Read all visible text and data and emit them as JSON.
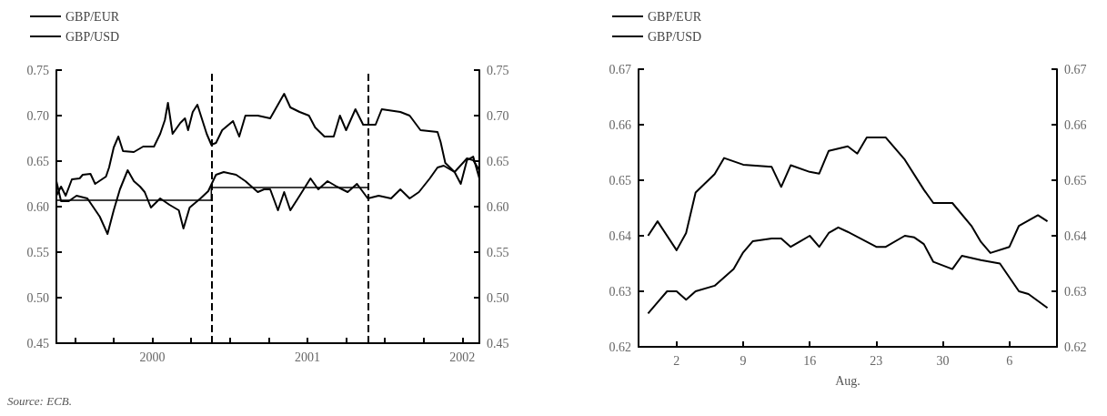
{
  "chart_data": [
    {
      "type": "line",
      "legend": "top left",
      "marker": "none",
      "annotations": [
        "Source: ECB."
      ],
      "xlim": [
        1999.88,
        2002.61
      ],
      "xticks": [
        {
          "value": 2000,
          "label": null
        },
        {
          "value": 2000.25,
          "label": null
        },
        {
          "value": 2000.5,
          "label": "2000"
        },
        {
          "value": 2000.75,
          "label": null
        },
        {
          "value": 2001,
          "label": null
        },
        {
          "value": 2001.25,
          "label": null
        },
        {
          "value": 2001.5,
          "label": "2001"
        },
        {
          "value": 2001.75,
          "label": null
        },
        {
          "value": 2002,
          "label": null
        },
        {
          "value": 2002.25,
          "label": null
        },
        {
          "value": 2002.5,
          "label": "2002"
        }
      ],
      "ylim": [
        0.45,
        0.75
      ],
      "yticks": [
        {
          "value": 0.45,
          "label": "0.45"
        },
        {
          "value": 0.5,
          "label": "0.50"
        },
        {
          "value": 0.55,
          "label": "0.55"
        },
        {
          "value": 0.6,
          "label": "0.60"
        },
        {
          "value": 0.65,
          "label": "0.65"
        },
        {
          "value": 0.7,
          "label": "0.70"
        },
        {
          "value": 0.75,
          "label": "0.75"
        }
      ],
      "y2lim": [
        0.45,
        0.75
      ],
      "y2ticks": [
        {
          "value": 0.45,
          "label": "0.45"
        },
        {
          "value": 0.5,
          "label": "0.50"
        },
        {
          "value": 0.55,
          "label": "0.55"
        },
        {
          "value": 0.6,
          "label": "0.60"
        },
        {
          "value": 0.65,
          "label": "0.65"
        },
        {
          "value": 0.7,
          "label": "0.70"
        },
        {
          "value": 0.75,
          "label": "0.75"
        }
      ],
      "ref_lines": [
        {
          "axis": "x",
          "value": 2000.88,
          "line_style": "dashed",
          "color": "#000000"
        },
        {
          "axis": "x",
          "value": 2001.89,
          "line_style": "dashed",
          "color": "#000000"
        }
      ],
      "series": [
        {
          "name": "GBP/EUR",
          "color": "#000000",
          "x": [
            1999.88,
            1999.91,
            1999.96,
            2000.01,
            2000.08,
            2000.12,
            2000.16,
            2000.21,
            2000.25,
            2000.29,
            2000.34,
            2000.38,
            2000.42,
            2000.45,
            2000.49,
            2000.55,
            2000.61,
            2000.67,
            2000.7,
            2000.74,
            2000.81,
            2000.86,
            2000.91,
            2000.96,
            2001.04,
            2001.1,
            2001.18,
            2001.22,
            2001.26,
            2001.31,
            2001.35,
            2001.39,
            2001.45,
            2001.52,
            2001.57,
            2001.63,
            2001.69,
            2001.76,
            2001.82,
            2001.89,
            2001.96,
            2002.04,
            2002.1,
            2002.16,
            2002.22,
            2002.29,
            2002.34,
            2002.38,
            2002.45,
            2002.53,
            2002.57,
            2002.61
          ],
          "values": [
            0.628,
            0.606,
            0.606,
            0.612,
            0.609,
            0.599,
            0.589,
            0.57,
            0.596,
            0.619,
            0.64,
            0.628,
            0.622,
            0.616,
            0.599,
            0.609,
            0.602,
            0.596,
            0.576,
            0.599,
            0.609,
            0.617,
            0.635,
            0.638,
            0.635,
            0.628,
            0.616,
            0.619,
            0.619,
            0.596,
            0.616,
            0.596,
            0.612,
            0.631,
            0.619,
            0.628,
            0.622,
            0.616,
            0.625,
            0.609,
            0.612,
            0.609,
            0.619,
            0.609,
            0.616,
            0.631,
            0.643,
            0.645,
            0.638,
            0.653,
            0.651,
            0.64
          ]
        },
        {
          "name": "GBP/USD",
          "color": "#000000",
          "x": [
            1999.88,
            1999.91,
            1999.94,
            1999.98,
            2000.03,
            2000.05,
            2000.1,
            2000.13,
            2000.2,
            2000.22,
            2000.25,
            2000.28,
            2000.31,
            2000.38,
            2000.44,
            2000.51,
            2000.55,
            2000.58,
            2000.6,
            2000.63,
            2000.68,
            2000.71,
            2000.73,
            2000.76,
            2000.79,
            2000.85,
            2000.88,
            2000.91,
            2000.95,
            2001.02,
            2001.06,
            2001.1,
            2001.18,
            2001.26,
            2001.35,
            2001.39,
            2001.45,
            2001.51,
            2001.55,
            2001.61,
            2001.67,
            2001.71,
            2001.75,
            2001.81,
            2001.86,
            2001.94,
            2001.98,
            2002.1,
            2002.16,
            2002.23,
            2002.34,
            2002.36,
            2002.39,
            2002.45,
            2002.49,
            2002.53,
            2002.57,
            2002.61
          ],
          "values": [
            0.612,
            0.622,
            0.612,
            0.63,
            0.631,
            0.635,
            0.636,
            0.625,
            0.633,
            0.643,
            0.665,
            0.677,
            0.661,
            0.66,
            0.666,
            0.666,
            0.68,
            0.695,
            0.714,
            0.68,
            0.692,
            0.697,
            0.684,
            0.704,
            0.712,
            0.68,
            0.668,
            0.67,
            0.684,
            0.694,
            0.677,
            0.7,
            0.7,
            0.697,
            0.724,
            0.709,
            0.704,
            0.7,
            0.687,
            0.677,
            0.677,
            0.7,
            0.684,
            0.707,
            0.69,
            0.69,
            0.707,
            0.704,
            0.7,
            0.684,
            0.682,
            0.671,
            0.648,
            0.638,
            0.625,
            0.651,
            0.655,
            0.631
          ]
        },
        {
          "color": "#000000",
          "x": [
            1999.88,
            2000.88,
            2000.88,
            2001.89
          ],
          "values": [
            0.607,
            0.607,
            0.621,
            0.621
          ]
        }
      ]
    },
    {
      "type": "line",
      "legend": "top left",
      "marker": "none",
      "xlabel": "Aug.",
      "xlim": [
        "--07-29",
        "--09-11"
      ],
      "xticks": [
        {
          "value": "--08-02",
          "label": "2"
        },
        {
          "value": "--08-09",
          "label": "9"
        },
        {
          "value": "--08-16",
          "label": "16"
        },
        {
          "value": "--08-23",
          "label": "23"
        },
        {
          "value": "--08-30",
          "label": "30"
        },
        {
          "value": "--09-06",
          "label": "6"
        }
      ],
      "ylim": [
        0.62,
        0.67
      ],
      "yticks": [
        0.62,
        0.63,
        0.64,
        0.65,
        0.66,
        0.67
      ],
      "y2lim": [
        0.62,
        0.67
      ],
      "y2ticks": [
        0.62,
        0.63,
        0.64,
        0.65,
        0.66,
        0.67
      ],
      "series": [
        {
          "name": "GBP/EUR",
          "color": "#000000",
          "x": [
            "--07-30",
            "--07-31",
            "--08-01",
            "--08-02",
            "--08-03",
            "--08-04",
            "--08-06",
            "--08-08",
            "--08-09",
            "--08-10",
            "--08-12",
            "--08-13",
            "--08-14",
            "--08-15",
            "--08-16",
            "--08-17",
            "--08-18",
            "--08-19",
            "--08-20",
            "--08-23",
            "--08-24",
            "--08-26",
            "--08-27",
            "--08-28",
            "--08-29",
            "--08-31",
            "--09-01",
            "--09-03",
            "--09-05",
            "--09-06",
            "--09-07",
            "--09-08",
            "--09-10"
          ],
          "values": [
            0.626,
            0.628,
            0.63,
            0.63,
            0.6285,
            0.63,
            0.631,
            0.634,
            0.637,
            0.639,
            0.6395,
            0.6395,
            0.638,
            0.639,
            0.64,
            0.638,
            0.6405,
            0.6415,
            0.6407,
            0.638,
            0.638,
            0.64,
            0.6397,
            0.6385,
            0.6353,
            0.634,
            0.6364,
            0.6356,
            0.635,
            0.6325,
            0.63,
            0.6295,
            0.627
          ]
        },
        {
          "name": "GBP/USD",
          "color": "#000000",
          "x": [
            "--07-30",
            "--07-31",
            "--08-02",
            "--08-03",
            "--08-04",
            "--08-06",
            "--08-07",
            "--08-09",
            "--08-12",
            "--08-13",
            "--08-14",
            "--08-16",
            "--08-17",
            "--08-18",
            "--08-20",
            "--08-21",
            "--08-22",
            "--08-24",
            "--08-26",
            "--08-28",
            "--08-29",
            "--08-31",
            "--09-02",
            "--09-03",
            "--09-04",
            "--09-06",
            "--09-07",
            "--09-09",
            "--09-10"
          ],
          "values": [
            0.64,
            0.6426,
            0.6374,
            0.6405,
            0.6478,
            0.6511,
            0.654,
            0.6528,
            0.6524,
            0.6488,
            0.6527,
            0.6515,
            0.6512,
            0.6553,
            0.6561,
            0.6548,
            0.6577,
            0.6577,
            0.6537,
            0.6483,
            0.6459,
            0.6459,
            0.6418,
            0.6389,
            0.6369,
            0.638,
            0.6418,
            0.6437,
            0.6426
          ]
        }
      ]
    }
  ]
}
